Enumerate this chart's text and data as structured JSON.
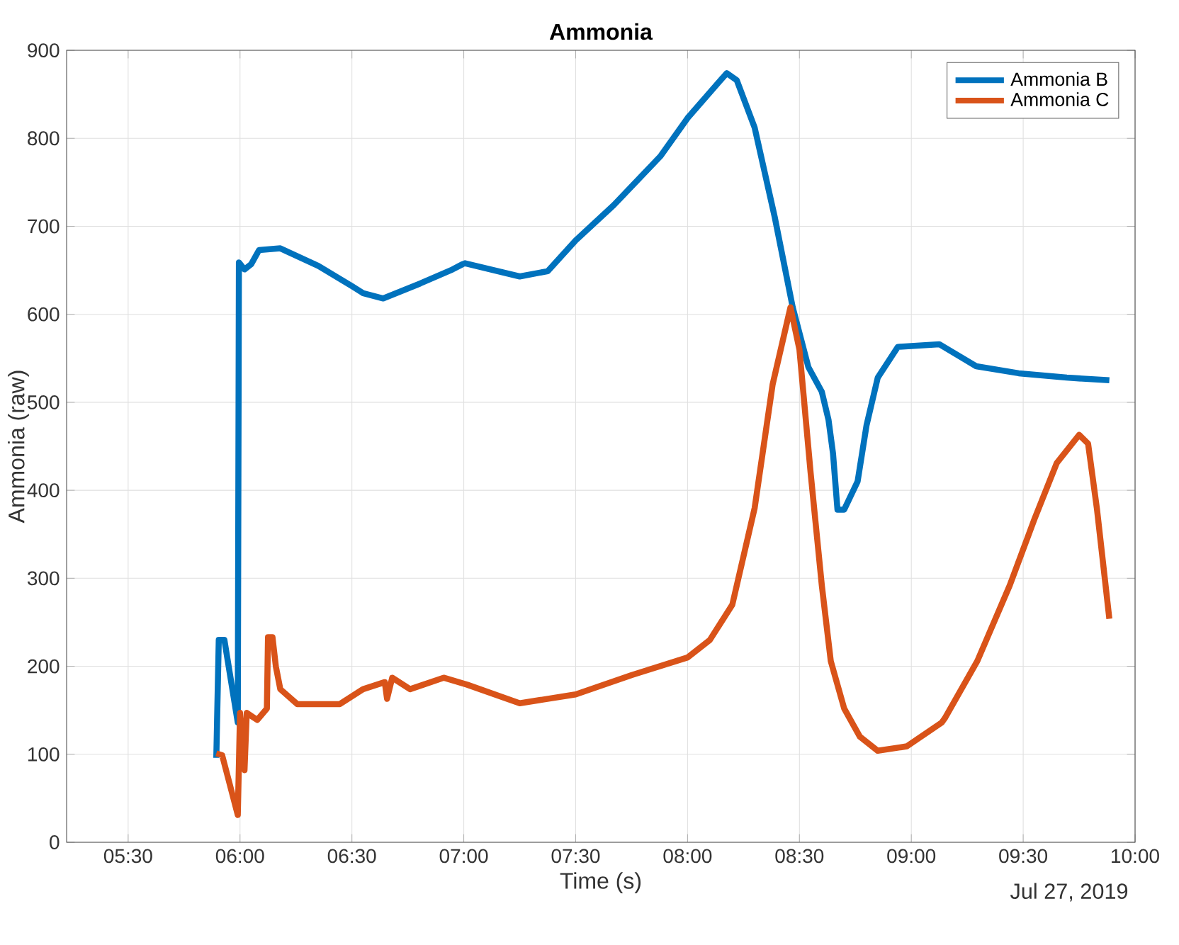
{
  "chart_data": {
    "type": "line",
    "title": "Ammonia",
    "xlabel": "Time (s)",
    "ylabel": "Ammonia (raw)",
    "annotations": [
      "Jul 27, 2019"
    ],
    "xlim": [
      5.225,
      10
    ],
    "xticks": [
      {
        "value": 5.5,
        "label": "05:30"
      },
      {
        "value": 6,
        "label": "06:00"
      },
      {
        "value": 6.5,
        "label": "06:30"
      },
      {
        "value": 7,
        "label": "07:00"
      },
      {
        "value": 7.5,
        "label": "07:30"
      },
      {
        "value": 8,
        "label": "08:00"
      },
      {
        "value": 8.5,
        "label": "08:30"
      },
      {
        "value": 9,
        "label": "09:00"
      },
      {
        "value": 9.5,
        "label": "09:30"
      },
      {
        "value": 10,
        "label": "10:00"
      }
    ],
    "ylim": [
      0,
      900
    ],
    "yticks": [
      0,
      100,
      200,
      300,
      400,
      500,
      600,
      700,
      800,
      900
    ],
    "grid": true,
    "legend": "top right",
    "marker": "none",
    "line_style": "solid",
    "series": [
      {
        "name": "Ammonia B",
        "color": "#0072bd",
        "x": [
          5.894,
          5.905,
          5.93,
          5.99,
          5.995,
          6.02,
          6.05,
          6.085,
          6.18,
          6.35,
          6.5,
          6.55,
          6.64,
          6.805,
          6.95,
          6.995,
          7.005,
          7.25,
          7.375,
          7.5,
          7.67,
          7.88,
          8.0,
          8.175,
          8.22,
          8.3,
          8.39,
          8.47,
          8.54,
          8.6,
          8.63,
          8.65,
          8.67,
          8.7,
          8.76,
          8.8,
          8.85,
          8.94,
          9.125,
          9.29,
          9.48,
          9.695,
          9.885
        ],
        "values": [
          96,
          230,
          230,
          136,
          659,
          651,
          657,
          673,
          675,
          655,
          632,
          624,
          618,
          635,
          651,
          657,
          658,
          643,
          649,
          684,
          724,
          780,
          823,
          874,
          866,
          812,
          710,
          608,
          540,
          512,
          480,
          442,
          378,
          378,
          410,
          474,
          528,
          563,
          566,
          541,
          533,
          528,
          525
        ]
      },
      {
        "name": "Ammonia C",
        "color": "#d95319",
        "x": [
          5.894,
          5.92,
          5.99,
          6.0,
          6.02,
          6.03,
          6.077,
          6.12,
          6.125,
          6.145,
          6.16,
          6.18,
          6.256,
          6.446,
          6.55,
          6.647,
          6.657,
          6.68,
          6.76,
          6.91,
          7.016,
          7.25,
          7.5,
          7.75,
          8.0,
          8.1,
          8.2,
          8.3,
          8.38,
          8.46,
          8.5,
          8.55,
          8.6,
          8.64,
          8.7,
          8.77,
          8.85,
          8.98,
          9.136,
          9.15,
          9.295,
          9.44,
          9.55,
          9.65,
          9.75,
          9.79,
          9.83,
          9.885
        ],
        "values": [
          101,
          99,
          31,
          147,
          82,
          147,
          139,
          152,
          233,
          233,
          200,
          174,
          157,
          157,
          174,
          182,
          163,
          187,
          174,
          187,
          179,
          158,
          168,
          190,
          210,
          230,
          270,
          380,
          520,
          608,
          560,
          420,
          292,
          206,
          152,
          120,
          104,
          109,
          136,
          141,
          206,
          292,
          367,
          431,
          463,
          453,
          378,
          254
        ]
      }
    ]
  }
}
